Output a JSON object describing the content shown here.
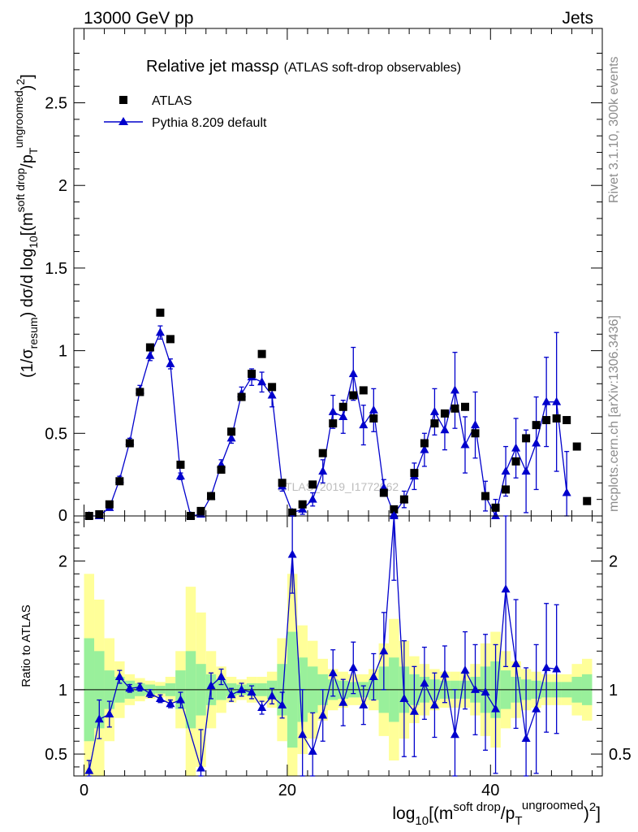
{
  "header": {
    "left": "13000 GeV pp",
    "right": "Jets"
  },
  "side_labels": {
    "rivet": "Rivet 3.1.10,  300k events",
    "mcplots": "mcplots.cern.ch [arXiv:1306.3436]"
  },
  "chart_data": [
    {
      "type": "scatter",
      "panel": "main",
      "title": "Relative jet massρ",
      "subtitle": "(ATLAS soft-drop observables)",
      "watermark": "ATLAS_2019_I1772062",
      "ylabel_main": "(1/σ",
      "ylabel_sub": "resum",
      "ylabel_rest": ") dσ/d log",
      "ylabel_sub10": "10",
      "ylabel_tail": "[(m",
      "ylabel_sup": "soft drop",
      "ylabel_slash": "/p",
      "ylabel_subT": "T",
      "ylabel_sup2": "ungroomed",
      "ylabel_end": ")",
      "ylabel_sq": "2",
      "ylabel_close": "]",
      "xlim": [
        -1,
        51
      ],
      "ylim": [
        0,
        2.95
      ],
      "yticks": [
        0.5,
        1,
        1.5,
        2,
        2.5
      ],
      "ytick_labels": [
        "0.5",
        "1",
        "1.5",
        "2",
        "2.5"
      ],
      "ytick_zero": "0",
      "legend_position": "top-left",
      "series": [
        {
          "name": "ATLAS",
          "marker": "square",
          "color": "#000000",
          "x": [
            0.5,
            1.5,
            2.5,
            3.5,
            4.5,
            5.5,
            6.5,
            7.5,
            8.5,
            9.5,
            10.5,
            11.5,
            12.5,
            13.5,
            14.5,
            15.5,
            16.5,
            17.5,
            18.5,
            19.5,
            20.5,
            21.5,
            22.5,
            23.5,
            24.5,
            25.5,
            26.5,
            27.5,
            28.5,
            29.5,
            30.5,
            31.5,
            32.5,
            33.5,
            34.5,
            35.5,
            36.5,
            37.5,
            38.5,
            39.5,
            40.5,
            41.5,
            42.5,
            43.5,
            44.5,
            45.5,
            46.5,
            47.5,
            48.5,
            49.5
          ],
          "y": [
            0.0,
            0.01,
            0.07,
            0.21,
            0.44,
            0.75,
            1.02,
            1.23,
            1.07,
            0.31,
            0.0,
            0.03,
            0.12,
            0.28,
            0.51,
            0.72,
            0.86,
            0.98,
            0.78,
            0.2,
            0.02,
            0.07,
            0.19,
            0.38,
            0.56,
            0.66,
            0.73,
            0.76,
            0.59,
            0.14,
            0.04,
            0.1,
            0.26,
            0.44,
            0.56,
            0.62,
            0.65,
            0.66,
            0.5,
            0.12,
            0.05,
            0.16,
            0.33,
            0.47,
            0.55,
            0.58,
            0.59,
            0.58,
            0.42,
            0.09
          ]
        },
        {
          "name": "Pythia 8.209 default",
          "marker": "triangle",
          "color": "#0000cc",
          "x": [
            0.5,
            1.5,
            2.5,
            3.5,
            4.5,
            5.5,
            6.5,
            7.5,
            8.5,
            9.5,
            10.5,
            11.5,
            12.5,
            13.5,
            14.5,
            15.5,
            16.5,
            17.5,
            18.5,
            19.5,
            20.5,
            21.5,
            22.5,
            23.5,
            24.5,
            25.5,
            26.5,
            27.5,
            28.5,
            29.5,
            30.5,
            31.5,
            32.5,
            33.5,
            34.5,
            35.5,
            36.5,
            37.5,
            38.5,
            39.5,
            40.5,
            41.5,
            42.5,
            43.5,
            44.5,
            45.5,
            46.5,
            47.5
          ],
          "y": [
            0.0,
            0.0,
            0.05,
            0.22,
            0.45,
            0.76,
            0.97,
            1.11,
            0.92,
            0.24,
            0.0,
            0.01,
            0.12,
            0.31,
            0.47,
            0.74,
            0.84,
            0.81,
            0.73,
            0.18,
            0.02,
            0.04,
            0.1,
            0.27,
            0.63,
            0.6,
            0.86,
            0.55,
            0.64,
            0.17,
            0.01,
            0.1,
            0.24,
            0.4,
            0.63,
            0.52,
            0.76,
            0.43,
            0.55,
            0.12,
            0.0,
            0.27,
            0.41,
            0.27,
            0.44,
            0.69,
            0.69,
            0.14
          ],
          "yerr": [
            0,
            0,
            0.01,
            0.02,
            0.02,
            0.03,
            0.03,
            0.04,
            0.03,
            0.02,
            0,
            0.01,
            0.02,
            0.03,
            0.03,
            0.04,
            0.05,
            0.06,
            0.07,
            0.03,
            0.01,
            0.03,
            0.04,
            0.07,
            0.1,
            0.1,
            0.16,
            0.12,
            0.13,
            0.05,
            0.04,
            0.05,
            0.08,
            0.1,
            0.14,
            0.12,
            0.23,
            0.17,
            0.2,
            0.09,
            0.1,
            0.15,
            0.18,
            0.25,
            0.28,
            0.27,
            0.42,
            0.25
          ]
        }
      ]
    },
    {
      "type": "scatter",
      "panel": "ratio",
      "ylabel": "Ratio to ATLAS",
      "xlabel_main": "log",
      "xlabel_sub10": "10",
      "xlabel_tail": "[(m",
      "xlabel_sup": "soft drop",
      "xlabel_slash": "/p",
      "xlabel_subT": "T",
      "xlabel_sup2": "ungroomed",
      "xlabel_end": ")",
      "xlabel_sq": "2",
      "xlabel_close": "]",
      "xlim": [
        -1,
        51
      ],
      "ylim": [
        0.33,
        2.35
      ],
      "xticks": [
        0,
        20,
        40
      ],
      "xtick_labels": [
        "0",
        "20",
        "40"
      ],
      "yticks": [
        0.5,
        1,
        2
      ],
      "ytick_labels": [
        "0.5",
        "1",
        "2"
      ],
      "reference_line": 1,
      "band_green_lo": [
        0.6,
        0.7,
        0.85,
        0.9,
        0.93,
        0.95,
        0.96,
        0.97,
        0.95,
        0.85,
        0.7,
        0.8,
        0.88,
        0.92,
        0.95,
        0.96,
        0.95,
        0.95,
        0.93,
        0.8,
        0.55,
        0.75,
        0.82,
        0.88,
        0.92,
        0.93,
        0.94,
        0.94,
        0.92,
        0.82,
        0.75,
        0.82,
        0.88,
        0.9,
        0.92,
        0.93,
        0.93,
        0.93,
        0.9,
        0.82,
        0.78,
        0.85,
        0.9,
        0.92,
        0.93,
        0.94,
        0.94,
        0.94,
        0.9,
        0.88
      ],
      "band_green_hi": [
        1.4,
        1.3,
        1.15,
        1.1,
        1.07,
        1.05,
        1.04,
        1.03,
        1.05,
        1.15,
        1.3,
        1.2,
        1.12,
        1.08,
        1.05,
        1.04,
        1.05,
        1.05,
        1.07,
        1.2,
        1.45,
        1.25,
        1.18,
        1.12,
        1.08,
        1.07,
        1.06,
        1.06,
        1.08,
        1.18,
        1.25,
        1.18,
        1.12,
        1.1,
        1.08,
        1.07,
        1.07,
        1.07,
        1.1,
        1.18,
        1.22,
        1.15,
        1.1,
        1.08,
        1.07,
        1.06,
        1.06,
        1.06,
        1.1,
        1.12
      ],
      "band_yellow_lo": [
        0.1,
        0.3,
        0.6,
        0.78,
        0.88,
        0.91,
        0.93,
        0.94,
        0.9,
        0.7,
        0.2,
        0.4,
        0.7,
        0.82,
        0.9,
        0.92,
        0.9,
        0.9,
        0.86,
        0.6,
        0.1,
        0.5,
        0.62,
        0.76,
        0.84,
        0.86,
        0.88,
        0.88,
        0.84,
        0.64,
        0.45,
        0.62,
        0.74,
        0.8,
        0.84,
        0.86,
        0.86,
        0.86,
        0.8,
        0.64,
        0.55,
        0.7,
        0.78,
        0.84,
        0.86,
        0.88,
        0.88,
        0.88,
        0.8,
        0.76
      ],
      "band_yellow_hi": [
        1.9,
        1.7,
        1.4,
        1.22,
        1.12,
        1.09,
        1.07,
        1.06,
        1.1,
        1.3,
        1.8,
        1.6,
        1.3,
        1.18,
        1.1,
        1.08,
        1.1,
        1.1,
        1.14,
        1.4,
        1.9,
        1.5,
        1.38,
        1.24,
        1.16,
        1.14,
        1.12,
        1.12,
        1.16,
        1.36,
        1.55,
        1.38,
        1.26,
        1.2,
        1.16,
        1.14,
        1.14,
        1.14,
        1.2,
        1.36,
        1.45,
        1.3,
        1.22,
        1.16,
        1.14,
        1.12,
        1.12,
        1.12,
        1.2,
        1.24
      ],
      "series": [
        {
          "name": "Pythia 8.209 default",
          "color": "#0000cc",
          "x": [
            0.5,
            1.5,
            2.5,
            3.5,
            4.5,
            5.5,
            6.5,
            7.5,
            8.5,
            9.5,
            11.5,
            12.5,
            13.5,
            14.5,
            15.5,
            16.5,
            17.5,
            18.5,
            19.5,
            20.5,
            21.5,
            22.5,
            23.5,
            24.5,
            25.5,
            26.5,
            27.5,
            28.5,
            29.5,
            30.5,
            31.5,
            32.5,
            33.5,
            34.5,
            35.5,
            36.5,
            37.5,
            38.5,
            39.5,
            40.5,
            41.5,
            42.5,
            43.5,
            44.5,
            45.5,
            46.5
          ],
          "y": [
            0.37,
            0.77,
            0.81,
            1.1,
            1.01,
            1.02,
            0.97,
            0.93,
            0.89,
            0.92,
            0.39,
            1.03,
            1.1,
            0.96,
            1.0,
            0.98,
            0.86,
            0.95,
            0.88,
            2.05,
            0.65,
            0.52,
            0.8,
            1.13,
            0.9,
            1.17,
            0.88,
            1.1,
            1.3,
            2.35,
            0.93,
            0.83,
            1.05,
            0.88,
            1.12,
            0.65,
            1.15,
            1.0,
            0.98,
            0.85,
            1.78,
            1.2,
            0.62,
            0.85,
            1.17,
            1.16
          ],
          "yerr": [
            0.08,
            0.15,
            0.1,
            0.05,
            0.03,
            0.03,
            0.03,
            0.03,
            0.03,
            0.06,
            0.3,
            0.1,
            0.06,
            0.05,
            0.05,
            0.05,
            0.05,
            0.06,
            0.1,
            0.3,
            0.35,
            0.3,
            0.2,
            0.18,
            0.18,
            0.2,
            0.15,
            0.18,
            0.3,
            0.5,
            0.45,
            0.35,
            0.28,
            0.25,
            0.22,
            0.35,
            0.3,
            0.35,
            0.45,
            0.5,
            0.6,
            0.5,
            0.55,
            0.5,
            0.5,
            0.5
          ]
        }
      ]
    }
  ]
}
